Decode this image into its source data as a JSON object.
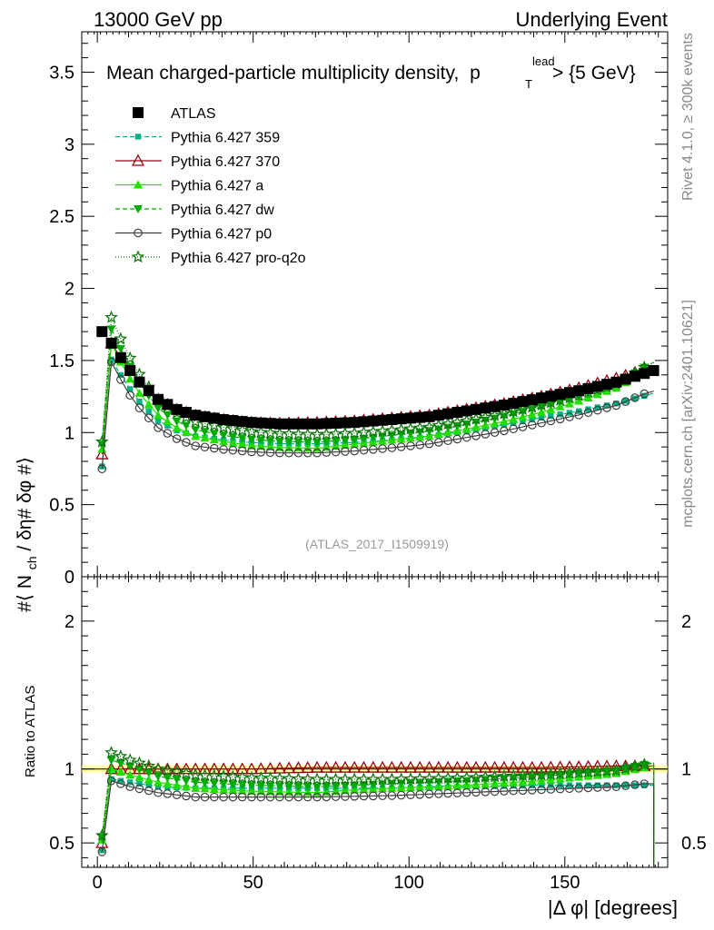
{
  "header": {
    "left": "13000 GeV pp",
    "right": "Underlying Event"
  },
  "side": {
    "rivet": "Rivet 4.1.0, ≥ 300k events",
    "mcplots": "mcplots.cern.ch [arXiv:2401.10621]"
  },
  "chart_data": {
    "type": "scatter",
    "title": "Mean charged-particle multiplicity density,",
    "title_math": {
      "p": "p",
      "sup": "lead",
      "sub": "T",
      "rest": " > {5 GeV}"
    },
    "analysis_label": "(ATLAS_2017_I1509919)",
    "ylabel": "#⟨ N",
    "ylabel_sub": "ch",
    "ylabel_rest": "/ δη# δφ #⟩",
    "ratio_ylabel": "Ratio to ATLAS",
    "xlabel": "|Δ φ| [degrees]",
    "xlim": [
      -5,
      183
    ],
    "ylim": [
      0,
      3.78
    ],
    "ratio_ylim": [
      0.335,
      2.3
    ],
    "x_ticks": [
      "0",
      "50",
      "100",
      "150"
    ],
    "x_tick_values": [
      0,
      50,
      100,
      150
    ],
    "y_ticks": [
      "0",
      "0.5",
      "1",
      "1.5",
      "2",
      "2.5",
      "3",
      "3.5"
    ],
    "y_tick_values": [
      0,
      0.5,
      1,
      1.5,
      2,
      2.5,
      3,
      3.5
    ],
    "ratio_ticks": [
      "0.5",
      "1",
      "2"
    ],
    "ratio_tick_values": [
      0.5,
      1,
      2
    ],
    "x_start": 1.5,
    "x_step": 3,
    "n_points": 60,
    "reference": {
      "name": "ATLAS",
      "color": "#000000",
      "anchors_x": [
        1.5,
        4.5,
        7.5,
        10.5,
        13.5,
        19.5,
        25.5,
        31.5,
        40.5,
        49.5,
        58.5,
        70.5,
        82.5,
        94.5,
        106.5,
        118.5,
        130.5,
        142.5,
        154.5,
        166.5,
        178.5
      ],
      "anchors_y": [
        1.7,
        1.62,
        1.52,
        1.43,
        1.35,
        1.23,
        1.16,
        1.12,
        1.09,
        1.07,
        1.06,
        1.06,
        1.07,
        1.09,
        1.11,
        1.15,
        1.19,
        1.24,
        1.29,
        1.35,
        1.43
      ]
    },
    "series": [
      {
        "name": "Pythia 6.427 359",
        "color": "#00b386",
        "marker": "square",
        "dash": "5,3",
        "ratio_x": [
          1.5,
          4.5,
          10.5,
          19.5,
          31.5,
          49.5,
          70.5,
          94.5,
          118.5,
          142.5,
          166.5,
          175.5,
          178.5
        ],
        "ratio_y": [
          0.45,
          0.93,
          0.91,
          0.88,
          0.87,
          0.87,
          0.87,
          0.87,
          0.88,
          0.89,
          0.89,
          0.89,
          0.89
        ]
      },
      {
        "name": "Pythia 6.427 370",
        "color": "#9b0012",
        "marker": "triangle-open",
        "dash": "",
        "ratio_x": [
          1.5,
          4.5,
          10.5,
          19.5,
          31.5,
          49.5,
          70.5,
          94.5,
          118.5,
          142.5,
          166.5,
          175.5,
          178.5
        ],
        "ratio_y": [
          0.5,
          1.0,
          1.0,
          1.0,
          1.0,
          1.0,
          1.01,
          1.01,
          1.01,
          1.01,
          1.02,
          1.02,
          1.02
        ]
      },
      {
        "name": "Pythia 6.427 a",
        "color": "#22dd00",
        "marker": "triangle",
        "dash": "",
        "ratio_x": [
          1.5,
          4.5,
          10.5,
          19.5,
          31.5,
          49.5,
          70.5,
          82.5,
          94.5,
          118.5,
          142.5,
          166.5,
          175.5,
          178.5
        ],
        "ratio_y": [
          0.52,
          1.0,
          0.96,
          0.91,
          0.87,
          0.85,
          0.84,
          0.86,
          0.87,
          0.89,
          0.92,
          0.97,
          1.01,
          1.02
        ]
      },
      {
        "name": "Pythia 6.427 dw",
        "color": "#00aa00",
        "marker": "triangle-down",
        "dash": "5,3",
        "ratio_x": [
          1.5,
          4.5,
          10.5,
          19.5,
          31.5,
          49.5,
          70.5,
          82.5,
          94.5,
          118.5,
          142.5,
          166.5,
          175.5,
          178.5
        ],
        "ratio_y": [
          0.54,
          1.06,
          1.02,
          0.95,
          0.91,
          0.89,
          0.88,
          0.89,
          0.9,
          0.92,
          0.95,
          0.99,
          1.03,
          1.04
        ]
      },
      {
        "name": "Pythia 6.427 p0",
        "color": "#404040",
        "marker": "circle-open",
        "dash": "",
        "ratio_x": [
          1.5,
          4.5,
          10.5,
          19.5,
          31.5,
          49.5,
          70.5,
          94.5,
          118.5,
          142.5,
          166.5,
          175.5,
          178.5
        ],
        "ratio_y": [
          0.44,
          0.92,
          0.88,
          0.84,
          0.81,
          0.81,
          0.81,
          0.82,
          0.84,
          0.86,
          0.88,
          0.9,
          0.9
        ]
      },
      {
        "name": "Pythia 6.427 pro-q2o",
        "color": "#117711",
        "marker": "star",
        "dash": "1,2",
        "ratio_x": [
          1.5,
          4.5,
          10.5,
          19.5,
          31.5,
          49.5,
          70.5,
          94.5,
          118.5,
          142.5,
          166.5,
          175.5,
          178.5
        ],
        "ratio_y": [
          0.55,
          1.11,
          1.06,
          1.0,
          0.96,
          0.94,
          0.93,
          0.93,
          0.94,
          0.96,
          0.99,
          1.03,
          1.04
        ]
      }
    ]
  }
}
